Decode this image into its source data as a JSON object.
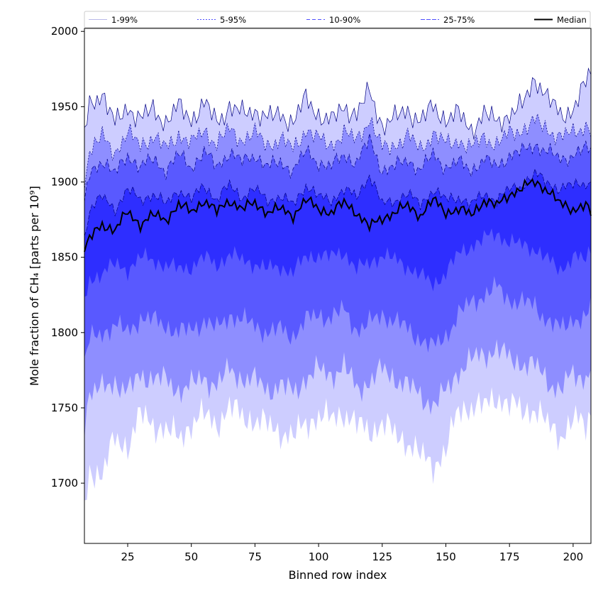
{
  "chart_data": {
    "type": "area",
    "title": "",
    "xlabel": "Binned row index",
    "ylabel": "Mole fraction of CH₄ [parts per 10⁹]",
    "xlim": [
      8,
      207
    ],
    "ylim": [
      1660,
      2002
    ],
    "xticks": [
      25,
      50,
      75,
      100,
      125,
      150,
      175,
      200
    ],
    "yticks": [
      1700,
      1750,
      1800,
      1850,
      1900,
      1950,
      2000
    ],
    "grid": false,
    "legend_position": "top",
    "colors": {
      "band_1_99": "#cdcdff",
      "band_5_95": "#8e8eff",
      "band_10_90": "#5959ff",
      "band_25_75": "#2e2eff",
      "median": "#000000",
      "band_edge": "#000080"
    },
    "legend": [
      {
        "label": "1-99%",
        "style": "band_1_99"
      },
      {
        "label": "5-95%",
        "style": "band_5_95"
      },
      {
        "label": "10-90%",
        "style": "band_10_90"
      },
      {
        "label": "25-75%",
        "style": "band_25_75"
      },
      {
        "label": "Median",
        "style": "median"
      }
    ],
    "x_knots": [
      8,
      10,
      15,
      20,
      25,
      30,
      35,
      40,
      45,
      50,
      55,
      60,
      65,
      70,
      75,
      80,
      85,
      90,
      95,
      100,
      105,
      110,
      115,
      120,
      125,
      130,
      135,
      140,
      145,
      150,
      155,
      160,
      165,
      170,
      175,
      180,
      185,
      190,
      195,
      200,
      205,
      207
    ],
    "series": [
      {
        "name": "1-99%",
        "lower": [
          1680,
          1710,
          1705,
          1730,
          1725,
          1745,
          1740,
          1735,
          1730,
          1740,
          1745,
          1740,
          1750,
          1745,
          1742,
          1738,
          1735,
          1730,
          1740,
          1745,
          1742,
          1748,
          1738,
          1735,
          1740,
          1732,
          1728,
          1718,
          1712,
          1722,
          1748,
          1752,
          1750,
          1758,
          1752,
          1748,
          1750,
          1738,
          1732,
          1742,
          1738,
          1748
        ],
        "upper": [
          1932,
          1950,
          1960,
          1938,
          1950,
          1942,
          1948,
          1940,
          1950,
          1942,
          1952,
          1940,
          1950,
          1945,
          1948,
          1942,
          1945,
          1940,
          1955,
          1945,
          1940,
          1950,
          1945,
          1960,
          1938,
          1942,
          1948,
          1940,
          1950,
          1942,
          1945,
          1935,
          1945,
          1940,
          1945,
          1950,
          1970,
          1955,
          1945,
          1948,
          1965,
          1975
        ]
      },
      {
        "name": "5-95%",
        "lower": [
          1740,
          1760,
          1762,
          1768,
          1760,
          1772,
          1770,
          1768,
          1762,
          1765,
          1770,
          1765,
          1775,
          1770,
          1768,
          1762,
          1765,
          1760,
          1770,
          1775,
          1772,
          1778,
          1762,
          1768,
          1775,
          1770,
          1765,
          1758,
          1752,
          1760,
          1775,
          1782,
          1785,
          1790,
          1782,
          1780,
          1778,
          1768,
          1762,
          1772,
          1770,
          1780
        ],
        "upper": [
          1902,
          1920,
          1930,
          1920,
          1932,
          1925,
          1930,
          1922,
          1932,
          1925,
          1935,
          1925,
          1935,
          1928,
          1932,
          1925,
          1928,
          1922,
          1935,
          1928,
          1925,
          1932,
          1928,
          1942,
          1922,
          1925,
          1930,
          1922,
          1932,
          1925,
          1928,
          1922,
          1930,
          1925,
          1932,
          1935,
          1940,
          1935,
          1930,
          1932,
          1938,
          1935
        ]
      },
      {
        "name": "10-90%",
        "lower": [
          1780,
          1795,
          1800,
          1805,
          1800,
          1810,
          1808,
          1805,
          1800,
          1802,
          1808,
          1802,
          1812,
          1808,
          1805,
          1800,
          1802,
          1798,
          1808,
          1812,
          1810,
          1815,
          1802,
          1806,
          1812,
          1808,
          1802,
          1796,
          1790,
          1798,
          1812,
          1820,
          1825,
          1830,
          1822,
          1820,
          1818,
          1808,
          1802,
          1810,
          1808,
          1818
        ],
        "upper": [
          1885,
          1905,
          1915,
          1905,
          1918,
          1910,
          1915,
          1908,
          1918,
          1910,
          1920,
          1910,
          1920,
          1913,
          1918,
          1910,
          1913,
          1908,
          1920,
          1913,
          1910,
          1918,
          1913,
          1928,
          1908,
          1910,
          1915,
          1908,
          1918,
          1910,
          1913,
          1908,
          1915,
          1910,
          1918,
          1920,
          1925,
          1920,
          1915,
          1918,
          1922,
          1920
        ]
      },
      {
        "name": "25-75%",
        "lower": [
          1820,
          1835,
          1840,
          1845,
          1842,
          1850,
          1848,
          1845,
          1842,
          1844,
          1850,
          1845,
          1852,
          1848,
          1846,
          1842,
          1844,
          1840,
          1850,
          1852,
          1850,
          1854,
          1842,
          1846,
          1852,
          1848,
          1844,
          1838,
          1832,
          1840,
          1852,
          1858,
          1862,
          1866,
          1860,
          1858,
          1856,
          1848,
          1842,
          1850,
          1848,
          1856
        ],
        "upper": [
          1862,
          1882,
          1890,
          1882,
          1895,
          1888,
          1892,
          1885,
          1895,
          1888,
          1898,
          1888,
          1898,
          1890,
          1895,
          1888,
          1890,
          1885,
          1898,
          1890,
          1888,
          1895,
          1890,
          1905,
          1885,
          1888,
          1892,
          1885,
          1895,
          1888,
          1890,
          1885,
          1892,
          1888,
          1895,
          1898,
          1905,
          1900,
          1895,
          1898,
          1900,
          1898
        ]
      },
      {
        "name": "Median",
        "values": [
          1855,
          1862,
          1872,
          1868,
          1880,
          1872,
          1878,
          1875,
          1885,
          1880,
          1888,
          1880,
          1888,
          1882,
          1886,
          1880,
          1882,
          1878,
          1888,
          1882,
          1880,
          1886,
          1880,
          1870,
          1876,
          1880,
          1884,
          1878,
          1888,
          1880,
          1882,
          1878,
          1888,
          1884,
          1892,
          1896,
          1900,
          1895,
          1885,
          1882,
          1885,
          1878
        ]
      }
    ]
  }
}
